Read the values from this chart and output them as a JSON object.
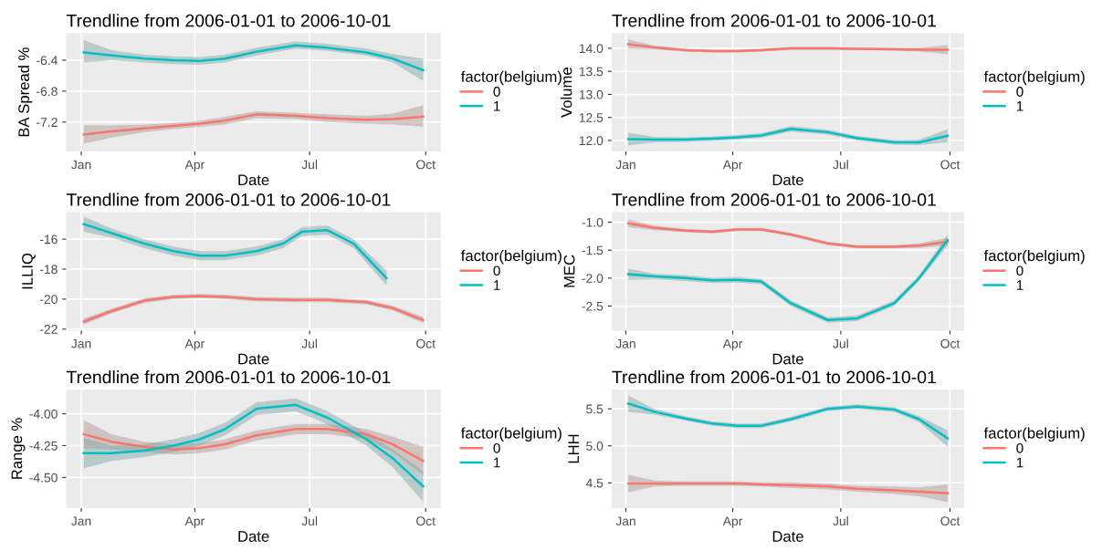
{
  "chart_data": [
    {
      "type": "line",
      "title": "Trendline from 2006-01-01 to 2006-10-01",
      "xlabel": "Date",
      "ylabel": "BA Spread %",
      "legend_title": "factor(belgium)",
      "legend": "right",
      "grid": true,
      "x": [
        "2006-01-03",
        "2006-01-25",
        "2006-02-20",
        "2006-03-15",
        "2006-04-05",
        "2006-04-25",
        "2006-05-20",
        "2006-06-20",
        "2006-07-15",
        "2006-08-15",
        "2006-09-05",
        "2006-09-29"
      ],
      "xlim": [
        "2005-12-20",
        "2006-10-13"
      ],
      "xticks": [
        {
          "value": "2006-01-01",
          "label": "Jan"
        },
        {
          "value": "2006-04-01",
          "label": "Apr"
        },
        {
          "value": "2006-07-01",
          "label": "Jul"
        },
        {
          "value": "2006-10-01",
          "label": "Oct"
        }
      ],
      "ylim": [
        -7.58,
        -6.05
      ],
      "yticks": [
        -7.2,
        -6.8,
        -6.4
      ],
      "series": [
        {
          "name": "0",
          "color": "#f8766d",
          "values": [
            -7.36,
            -7.32,
            -7.28,
            -7.25,
            -7.22,
            -7.18,
            -7.1,
            -7.12,
            -7.15,
            -7.17,
            -7.16,
            -7.13
          ],
          "lower": [
            -7.48,
            -7.4,
            -7.33,
            -7.29,
            -7.26,
            -7.23,
            -7.15,
            -7.16,
            -7.2,
            -7.22,
            -7.23,
            -7.26
          ],
          "upper": [
            -7.24,
            -7.24,
            -7.23,
            -7.21,
            -7.18,
            -7.13,
            -7.06,
            -7.08,
            -7.1,
            -7.12,
            -7.09,
            -6.98
          ]
        },
        {
          "name": "1",
          "color": "#00bfc4",
          "values": [
            -6.3,
            -6.34,
            -6.38,
            -6.4,
            -6.41,
            -6.38,
            -6.29,
            -6.21,
            -6.24,
            -6.3,
            -6.38,
            -6.53
          ],
          "lower": [
            -6.43,
            -6.4,
            -6.43,
            -6.45,
            -6.46,
            -6.43,
            -6.34,
            -6.25,
            -6.28,
            -6.34,
            -6.43,
            -6.67
          ],
          "upper": [
            -6.14,
            -6.27,
            -6.33,
            -6.35,
            -6.36,
            -6.33,
            -6.24,
            -6.16,
            -6.19,
            -6.25,
            -6.32,
            -6.38
          ]
        }
      ]
    },
    {
      "type": "line",
      "title": "Trendline from 2006-01-01 to 2006-10-01",
      "xlabel": "Date",
      "ylabel": "Volume",
      "legend_title": "factor(belgium)",
      "legend": "right",
      "grid": true,
      "x": [
        "2006-01-03",
        "2006-01-25",
        "2006-02-20",
        "2006-03-15",
        "2006-04-05",
        "2006-04-25",
        "2006-05-20",
        "2006-06-20",
        "2006-07-15",
        "2006-08-15",
        "2006-09-05",
        "2006-09-29"
      ],
      "xlim": [
        "2005-12-20",
        "2006-10-13"
      ],
      "xticks": [
        {
          "value": "2006-01-01",
          "label": "Jan"
        },
        {
          "value": "2006-04-01",
          "label": "Apr"
        },
        {
          "value": "2006-07-01",
          "label": "Jul"
        },
        {
          "value": "2006-10-01",
          "label": "Oct"
        }
      ],
      "ylim": [
        11.76,
        14.33
      ],
      "yticks": [
        {
          "value": 12,
          "label": "12.0"
        },
        {
          "value": 12.5,
          "label": "12.5"
        },
        {
          "value": 13,
          "label": "13.0"
        },
        {
          "value": 13.5,
          "label": "13.5"
        },
        {
          "value": 14,
          "label": "14.0"
        }
      ],
      "series": [
        {
          "name": "0",
          "color": "#f8766d",
          "values": [
            14.09,
            14.02,
            13.96,
            13.94,
            13.94,
            13.96,
            14.0,
            14.0,
            13.99,
            13.98,
            13.97,
            13.97
          ],
          "lower": [
            13.99,
            13.98,
            13.93,
            13.91,
            13.91,
            13.93,
            13.97,
            13.97,
            13.96,
            13.95,
            13.93,
            13.87
          ],
          "upper": [
            14.19,
            14.06,
            13.99,
            13.97,
            13.97,
            13.99,
            14.03,
            14.03,
            14.02,
            14.01,
            14.01,
            14.07
          ]
        },
        {
          "name": "1",
          "color": "#00bfc4",
          "values": [
            12.03,
            12.02,
            12.02,
            12.04,
            12.07,
            12.11,
            12.25,
            12.18,
            12.05,
            11.96,
            11.96,
            12.1
          ],
          "lower": [
            11.89,
            11.96,
            11.97,
            11.99,
            12.02,
            12.06,
            12.19,
            12.13,
            12.0,
            11.91,
            11.9,
            11.96
          ],
          "upper": [
            12.17,
            12.08,
            12.07,
            12.09,
            12.12,
            12.16,
            12.31,
            12.23,
            12.1,
            12.01,
            12.02,
            12.24
          ]
        }
      ]
    },
    {
      "type": "line",
      "title": "Trendline from 2006-01-01 to 2006-10-01",
      "xlabel": "Date",
      "ylabel": "ILLIQ",
      "legend_title": "factor(belgium)",
      "legend": "right",
      "grid": true,
      "x": [
        "2006-01-03",
        "2006-01-25",
        "2006-02-20",
        "2006-03-15",
        "2006-04-05",
        "2006-04-25",
        "2006-05-20",
        "2006-06-20",
        "2006-07-15",
        "2006-08-15",
        "2006-09-05",
        "2006-09-29"
      ],
      "xlim": [
        "2005-12-20",
        "2006-10-13"
      ],
      "xticks": [
        {
          "value": "2006-01-01",
          "label": "Jan"
        },
        {
          "value": "2006-04-01",
          "label": "Apr"
        },
        {
          "value": "2006-07-01",
          "label": "Jul"
        },
        {
          "value": "2006-10-01",
          "label": "Oct"
        }
      ],
      "ylim": [
        -22.1,
        -14.2
      ],
      "yticks": [
        -22,
        -20,
        -18,
        -16
      ],
      "series": [
        {
          "name": "0",
          "color": "#f8766d",
          "values": [
            -21.5,
            -20.8,
            -20.1,
            -19.85,
            -19.8,
            -19.85,
            -20.0,
            -20.05,
            -20.05,
            -20.2,
            -20.6,
            -21.4
          ],
          "lower": [
            -21.7,
            -20.95,
            -20.25,
            -20.0,
            -19.95,
            -20.0,
            -20.15,
            -20.2,
            -20.2,
            -20.35,
            -20.75,
            -21.6
          ],
          "upper": [
            -21.3,
            -20.65,
            -19.95,
            -19.7,
            -19.65,
            -19.7,
            -19.85,
            -19.9,
            -19.9,
            -20.05,
            -20.45,
            -21.2
          ]
        },
        {
          "name": "1",
          "color": "#00bfc4",
          "x": [
            "2006-01-03",
            "2006-01-25",
            "2006-02-20",
            "2006-03-15",
            "2006-04-05",
            "2006-04-25",
            "2006-05-20",
            "2006-06-10",
            "2006-06-25",
            "2006-07-15",
            "2006-08-05",
            "2006-08-31"
          ],
          "values": [
            -15.0,
            -15.6,
            -16.3,
            -16.8,
            -17.1,
            -17.1,
            -16.8,
            -16.3,
            -15.5,
            -15.4,
            -16.3,
            -18.6
          ],
          "lower": [
            -15.5,
            -15.9,
            -16.6,
            -17.1,
            -17.4,
            -17.4,
            -17.1,
            -16.6,
            -15.8,
            -15.7,
            -16.6,
            -19.1
          ],
          "upper": [
            -14.5,
            -15.3,
            -16.0,
            -16.5,
            -16.8,
            -16.8,
            -16.5,
            -16.0,
            -15.2,
            -15.1,
            -16.0,
            -18.1
          ]
        }
      ]
    },
    {
      "type": "line",
      "title": "Trendline from 2006-01-01 to 2006-10-01",
      "xlabel": "Date",
      "ylabel": "MEC",
      "legend_title": "factor(belgium)",
      "legend": "right",
      "grid": true,
      "x": [
        "2006-01-03",
        "2006-01-25",
        "2006-02-20",
        "2006-03-15",
        "2006-04-05",
        "2006-04-25",
        "2006-05-20",
        "2006-06-20",
        "2006-07-15",
        "2006-08-15",
        "2006-09-05",
        "2006-09-29"
      ],
      "xlim": [
        "2005-12-20",
        "2006-10-13"
      ],
      "xticks": [
        {
          "value": "2006-01-01",
          "label": "Jan"
        },
        {
          "value": "2006-04-01",
          "label": "Apr"
        },
        {
          "value": "2006-07-01",
          "label": "Jul"
        },
        {
          "value": "2006-10-01",
          "label": "Oct"
        }
      ],
      "ylim": [
        -2.94,
        -0.82
      ],
      "yticks": [
        {
          "value": -2.5,
          "label": "-2.5"
        },
        {
          "value": -2,
          "label": "-2.0"
        },
        {
          "value": -1.5,
          "label": "-1.5"
        },
        {
          "value": -1,
          "label": "-1.0"
        }
      ],
      "series": [
        {
          "name": "0",
          "color": "#f8766d",
          "values": [
            -1.02,
            -1.1,
            -1.15,
            -1.17,
            -1.13,
            -1.13,
            -1.22,
            -1.38,
            -1.44,
            -1.44,
            -1.42,
            -1.35
          ],
          "lower": [
            -1.09,
            -1.14,
            -1.18,
            -1.2,
            -1.16,
            -1.16,
            -1.25,
            -1.41,
            -1.47,
            -1.47,
            -1.46,
            -1.42
          ],
          "upper": [
            -0.95,
            -1.06,
            -1.12,
            -1.14,
            -1.1,
            -1.1,
            -1.19,
            -1.35,
            -1.41,
            -1.41,
            -1.38,
            -1.28
          ]
        },
        {
          "name": "1",
          "color": "#00bfc4",
          "values": [
            -1.93,
            -1.97,
            -2.0,
            -2.04,
            -2.03,
            -2.06,
            -2.45,
            -2.75,
            -2.72,
            -2.45,
            -2.0,
            -1.32
          ],
          "lower": [
            -2.03,
            -2.02,
            -2.05,
            -2.09,
            -2.08,
            -2.11,
            -2.5,
            -2.8,
            -2.77,
            -2.5,
            -2.05,
            -1.42
          ],
          "upper": [
            -1.83,
            -1.92,
            -1.95,
            -1.99,
            -1.98,
            -2.01,
            -2.4,
            -2.7,
            -2.67,
            -2.4,
            -1.95,
            -1.22
          ]
        }
      ]
    },
    {
      "type": "line",
      "title": "Trendline from 2006-01-01 to 2006-10-01",
      "xlabel": "Date",
      "ylabel": "Range %",
      "legend_title": "factor(belgium)",
      "legend": "right",
      "grid": true,
      "x": [
        "2006-01-03",
        "2006-01-25",
        "2006-02-20",
        "2006-03-15",
        "2006-04-05",
        "2006-04-25",
        "2006-05-20",
        "2006-06-20",
        "2006-07-15",
        "2006-08-15",
        "2006-09-05",
        "2006-09-29"
      ],
      "xlim": [
        "2005-12-20",
        "2006-10-13"
      ],
      "xticks": [
        {
          "value": "2006-01-01",
          "label": "Jan"
        },
        {
          "value": "2006-04-01",
          "label": "Apr"
        },
        {
          "value": "2006-07-01",
          "label": "Jul"
        },
        {
          "value": "2006-10-01",
          "label": "Oct"
        }
      ],
      "ylim": [
        -4.74,
        -3.81
      ],
      "yticks": [
        {
          "value": -4.5,
          "label": "-4.50"
        },
        {
          "value": -4.25,
          "label": "-4.25"
        },
        {
          "value": -4,
          "label": "-4.00"
        }
      ],
      "series": [
        {
          "name": "0",
          "color": "#f8766d",
          "values": [
            -4.16,
            -4.22,
            -4.26,
            -4.28,
            -4.27,
            -4.24,
            -4.17,
            -4.12,
            -4.12,
            -4.16,
            -4.24,
            -4.37
          ],
          "lower": [
            -4.27,
            -4.28,
            -4.3,
            -4.32,
            -4.31,
            -4.28,
            -4.21,
            -4.16,
            -4.16,
            -4.2,
            -4.3,
            -4.48
          ],
          "upper": [
            -4.05,
            -4.16,
            -4.22,
            -4.24,
            -4.23,
            -4.2,
            -4.13,
            -4.08,
            -4.08,
            -4.12,
            -4.18,
            -4.26
          ]
        },
        {
          "name": "1",
          "color": "#00bfc4",
          "values": [
            -4.31,
            -4.31,
            -4.29,
            -4.25,
            -4.2,
            -4.12,
            -3.96,
            -3.93,
            -4.03,
            -4.2,
            -4.35,
            -4.57
          ],
          "lower": [
            -4.43,
            -4.37,
            -4.34,
            -4.3,
            -4.25,
            -4.17,
            -4.01,
            -3.98,
            -4.08,
            -4.25,
            -4.42,
            -4.69
          ],
          "upper": [
            -4.19,
            -4.25,
            -4.24,
            -4.2,
            -4.15,
            -4.07,
            -3.91,
            -3.88,
            -3.98,
            -4.15,
            -4.28,
            -4.45
          ]
        }
      ]
    },
    {
      "type": "line",
      "title": "Trendline from 2006-01-01 to 2006-10-01",
      "xlabel": "Date",
      "ylabel": "LHH",
      "legend_title": "factor(belgium)",
      "legend": "right",
      "grid": true,
      "x": [
        "2006-01-03",
        "2006-01-25",
        "2006-02-20",
        "2006-03-15",
        "2006-04-05",
        "2006-04-25",
        "2006-05-20",
        "2006-06-20",
        "2006-07-15",
        "2006-08-15",
        "2006-09-05",
        "2006-09-29"
      ],
      "xlim": [
        "2005-12-20",
        "2006-10-13"
      ],
      "xticks": [
        {
          "value": "2006-01-01",
          "label": "Jan"
        },
        {
          "value": "2006-04-01",
          "label": "Apr"
        },
        {
          "value": "2006-07-01",
          "label": "Jul"
        },
        {
          "value": "2006-10-01",
          "label": "Oct"
        }
      ],
      "ylim": [
        4.16,
        5.76
      ],
      "yticks": [
        4.5,
        {
          "value": 5,
          "label": "5.0"
        },
        5.5
      ],
      "series": [
        {
          "name": "0",
          "color": "#f8766d",
          "values": [
            4.49,
            4.49,
            4.49,
            4.49,
            4.49,
            4.48,
            4.47,
            4.45,
            4.42,
            4.4,
            4.38,
            4.36
          ],
          "lower": [
            4.37,
            4.45,
            4.46,
            4.46,
            4.46,
            4.45,
            4.43,
            4.41,
            4.38,
            4.35,
            4.32,
            4.24
          ],
          "upper": [
            4.61,
            4.53,
            4.52,
            4.52,
            4.52,
            4.51,
            4.51,
            4.49,
            4.46,
            4.45,
            4.44,
            4.48
          ]
        },
        {
          "name": "1",
          "color": "#00bfc4",
          "values": [
            5.57,
            5.46,
            5.37,
            5.3,
            5.27,
            5.27,
            5.36,
            5.5,
            5.53,
            5.49,
            5.36,
            5.1
          ],
          "lower": [
            5.46,
            5.42,
            5.34,
            5.27,
            5.24,
            5.24,
            5.33,
            5.47,
            5.5,
            5.46,
            5.32,
            4.99
          ],
          "upper": [
            5.68,
            5.5,
            5.4,
            5.33,
            5.3,
            5.3,
            5.39,
            5.53,
            5.56,
            5.52,
            5.4,
            5.21
          ]
        }
      ]
    }
  ]
}
